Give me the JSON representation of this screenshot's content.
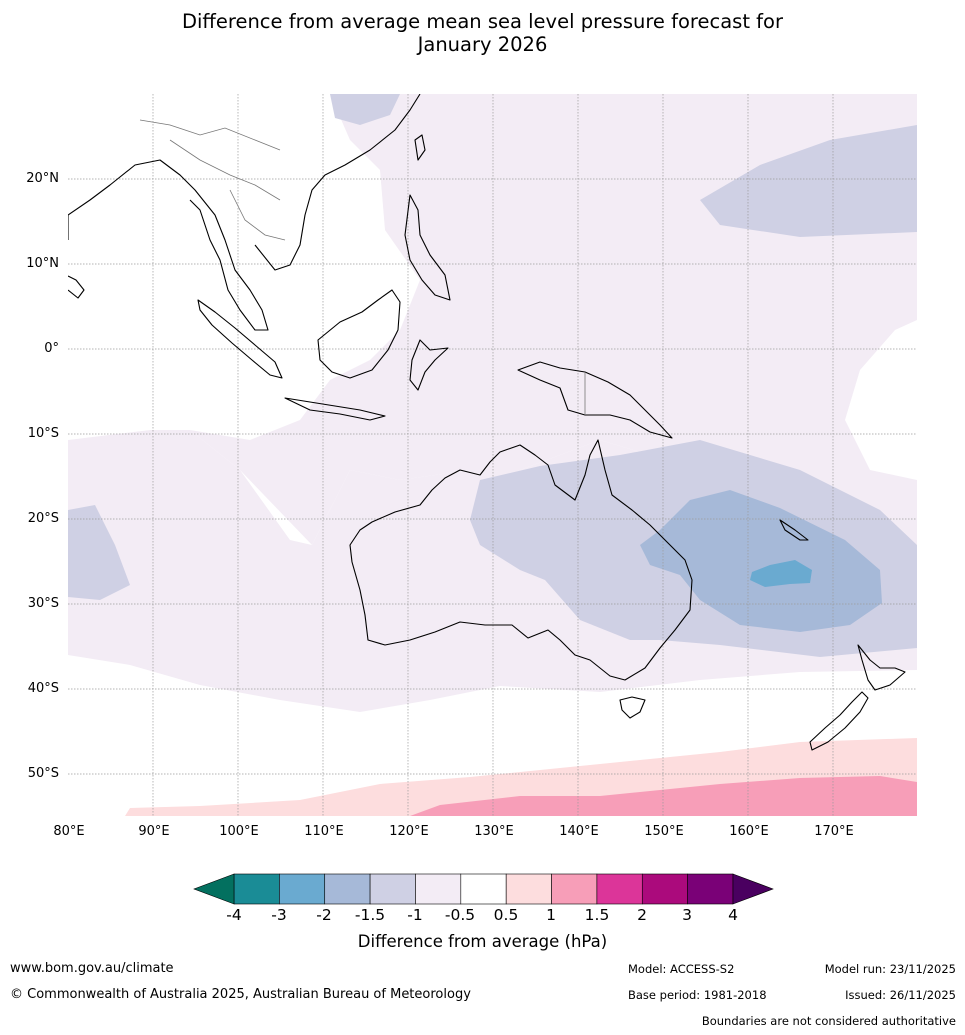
{
  "title": {
    "line1": "Difference from average mean sea level pressure forecast for",
    "line2": "January 2026"
  },
  "map": {
    "lat_labels": [
      "20°N",
      "10°N",
      "0°",
      "10°S",
      "20°S",
      "30°S",
      "40°S",
      "50°S"
    ],
    "lon_labels": [
      "80°E",
      "90°E",
      "100°E",
      "110°E",
      "120°E",
      "130°E",
      "140°E",
      "150°E",
      "160°E",
      "170°E"
    ]
  },
  "colorbar": {
    "colors": [
      "#1a8c96",
      "#6aaad0",
      "#a6b9d8",
      "#cfd0e4",
      "#f3ecf5",
      "#ffffff",
      "#fdddde",
      "#f79eb8",
      "#dc3599",
      "#ab0a7c",
      "#7a0177"
    ],
    "min_arrow_color": "#03705f",
    "max_arrow_color": "#4a0060",
    "ticks": [
      "-4",
      "-3",
      "-2",
      "-1.5",
      "-1",
      "-0.5",
      "0.5",
      "1",
      "1.5",
      "2",
      "3",
      "4"
    ],
    "label": "Difference from average (hPa)"
  },
  "footer": {
    "url": "www.bom.gov.au/climate",
    "copyright": "© Commonwealth of Australia 2025, Australian Bureau of Meteorology",
    "model": "Model: ACCESS-S2",
    "base_period": "Base period: 1981-2018",
    "model_run": "Model run: 23/11/2025",
    "issued": "Issued: 26/11/2025",
    "disclaimer": "Boundaries are not considered authoritative"
  }
}
